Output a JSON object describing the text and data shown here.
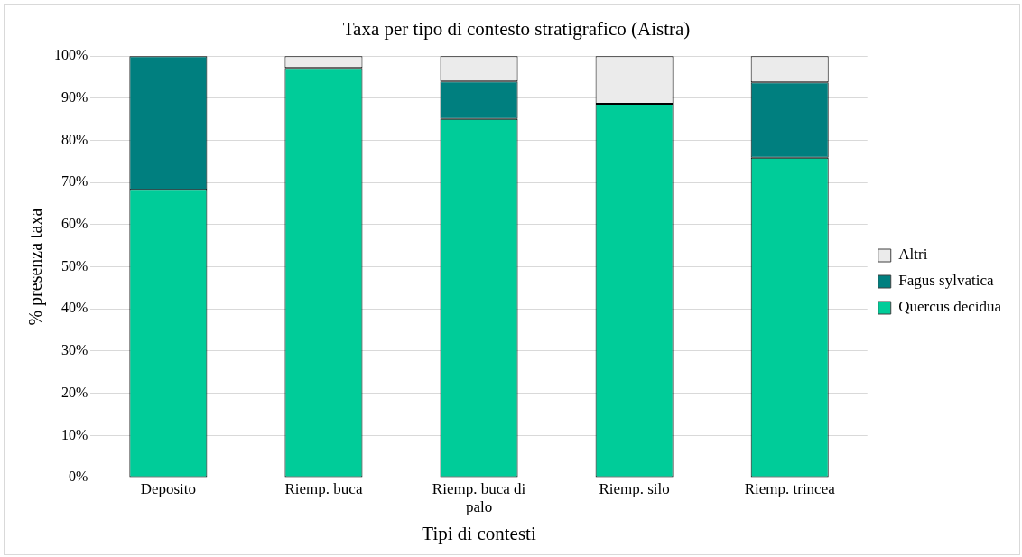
{
  "chart_data": {
    "type": "bar",
    "stacked": true,
    "title": "Taxa per tipo di contesto stratigrafico (Aistra)",
    "xlabel": "Tipi di contesti",
    "ylabel": "% presenza taxa",
    "categories": [
      "Deposito",
      "Riemp. buca",
      "Riemp. buca di palo",
      "Riemp. silo",
      "Riemp. trincea"
    ],
    "series": [
      {
        "name": "Quercus decidua",
        "color": "#00cc99",
        "values": [
          68.3,
          97.2,
          85.1,
          88.7,
          75.9
        ]
      },
      {
        "name": "Fagus sylvatica",
        "color": "#007f7f",
        "values": [
          31.7,
          0,
          8.9,
          0,
          17.9
        ]
      },
      {
        "name": "Altri",
        "color": "#ebebeb",
        "values": [
          0,
          2.8,
          6.0,
          11.3,
          6.2
        ]
      }
    ],
    "ylim": [
      0,
      100
    ],
    "yticks": [
      {
        "value": 0,
        "label": "0%"
      },
      {
        "value": 10,
        "label": "10%"
      },
      {
        "value": 20,
        "label": "20%"
      },
      {
        "value": 30,
        "label": "30%"
      },
      {
        "value": 40,
        "label": "40%"
      },
      {
        "value": 50,
        "label": "50%"
      },
      {
        "value": 60,
        "label": "60%"
      },
      {
        "value": 70,
        "label": "70%"
      },
      {
        "value": 80,
        "label": "80%"
      },
      {
        "value": 90,
        "label": "90%"
      },
      {
        "value": 100,
        "label": "100%"
      }
    ],
    "grid": "y",
    "legend": "right"
  }
}
